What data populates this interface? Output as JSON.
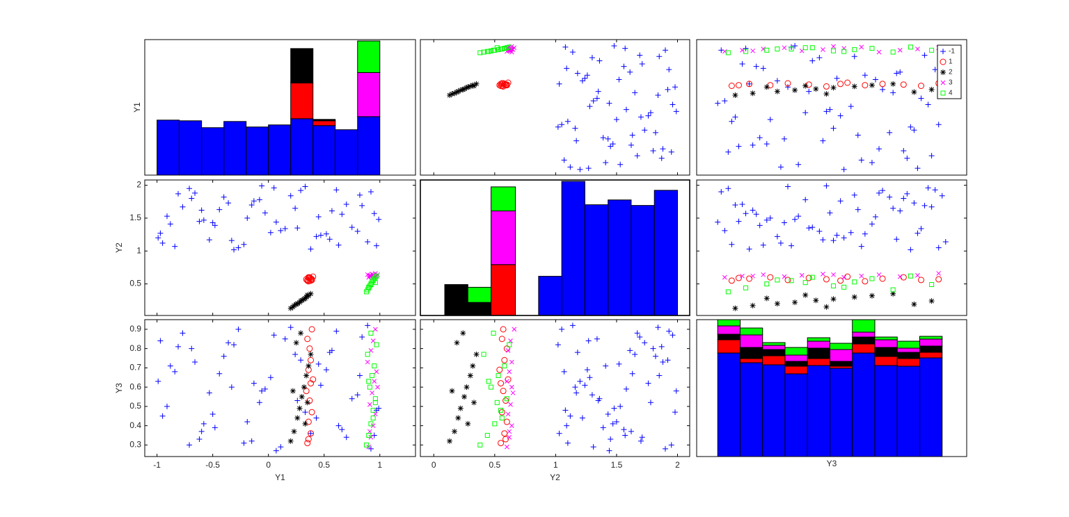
{
  "chart_data": {
    "type": "scatter_matrix",
    "variables": [
      "Y1",
      "Y2",
      "Y3"
    ],
    "xlim": {
      "Y1": [
        -1.11,
        1.32
      ],
      "Y2": [
        -0.11,
        2.1
      ],
      "Y3": [
        0.21,
        0.98
      ]
    },
    "ylim": {
      "Y1": [
        -1.08,
        1.09
      ],
      "Y2": [
        0.02,
        2.08
      ],
      "Y3": [
        0.24,
        0.95
      ]
    },
    "xticks": {
      "Y1": [
        -1,
        -0.5,
        0,
        0.5,
        1
      ],
      "Y2": [
        0,
        0.5,
        1,
        1.5,
        2
      ]
    },
    "yticks": {
      "Y2": [
        0.5,
        1,
        1.5,
        2
      ],
      "Y3": [
        0.3,
        0.4,
        0.5,
        0.6,
        0.7,
        0.8,
        0.9
      ]
    },
    "legend": "upper right",
    "series": [
      {
        "name": "-1",
        "color": "#0000ff",
        "marker": "+",
        "Y1": [
          -0.95,
          -0.81,
          -0.62,
          -0.44,
          -0.27,
          -0.08,
          0.11,
          0.29,
          0.47,
          0.66,
          0.84,
          0.97,
          -0.88,
          -0.71,
          -0.53,
          -0.36,
          -0.19,
          0.02,
          0.2,
          0.38,
          0.57,
          0.75,
          0.92,
          -0.99,
          -0.77,
          -0.58,
          -0.4,
          -0.22,
          -0.03,
          0.15,
          0.33,
          0.52,
          0.7,
          0.89,
          -0.91,
          -0.66,
          -0.48,
          -0.31,
          -0.13,
          0.07,
          0.24,
          0.43,
          0.61,
          0.8,
          0.95,
          -0.84,
          -0.69,
          -0.5,
          -0.33,
          -0.15,
          0.05,
          0.26,
          0.45,
          0.63,
          0.82,
          -0.97,
          -0.6,
          -0.06,
          0.55,
          0.99
        ],
        "Y2": [
          1.12,
          1.87,
          1.45,
          1.63,
          1.05,
          1.78,
          1.31,
          1.92,
          1.24,
          1.56,
          1.69,
          1.08,
          1.41,
          1.95,
          1.17,
          1.73,
          1.5,
          1.28,
          1.84,
          1.03,
          1.61,
          1.36,
          1.9,
          1.2,
          1.67,
          1.47,
          1.82,
          1.1,
          1.58,
          1.34,
          1.98,
          1.26,
          1.71,
          1.14,
          1.53,
          1.88,
          1.39,
          1.02,
          1.76,
          1.44,
          1.65,
          1.22,
          1.93,
          1.3,
          1.57,
          1.07,
          1.8,
          1.43,
          1.16,
          1.7,
          1.96,
          1.35,
          1.52,
          1.09,
          1.85,
          1.27,
          1.62,
          1.99,
          1.18,
          1.48
        ],
        "Y3": [
          0.45,
          0.81,
          0.33,
          0.67,
          0.9,
          0.52,
          0.29,
          0.74,
          0.61,
          0.38,
          0.86,
          0.48,
          0.71,
          0.3,
          0.57,
          0.83,
          0.42,
          0.65,
          0.91,
          0.36,
          0.79,
          0.54,
          0.28,
          0.63,
          0.88,
          0.41,
          0.76,
          0.31,
          0.59,
          0.85,
          0.47,
          0.69,
          0.34,
          0.92,
          0.5,
          0.73,
          0.39,
          0.82,
          0.62,
          0.27,
          0.77,
          0.44,
          0.89,
          0.56,
          0.35,
          0.68,
          0.8,
          0.46,
          0.6,
          0.32,
          0.87,
          0.53,
          0.72,
          0.4,
          0.66,
          0.84,
          0.37,
          0.58,
          0.78,
          0.49
        ]
      },
      {
        "name": "1",
        "color": "#ff0000",
        "marker": "o",
        "Y1": [
          0.35,
          0.38,
          0.36,
          0.39,
          0.37,
          0.34,
          0.4,
          0.36,
          0.38,
          0.37,
          0.35,
          0.39,
          0.36,
          0.38
        ],
        "Y2": [
          0.55,
          0.58,
          0.6,
          0.56,
          0.59,
          0.57,
          0.61,
          0.54,
          0.58,
          0.6,
          0.56,
          0.57,
          0.59,
          0.55
        ],
        "Y3": [
          0.31,
          0.36,
          0.42,
          0.47,
          0.53,
          0.58,
          0.64,
          0.69,
          0.74,
          0.8,
          0.85,
          0.9,
          0.33,
          0.62
        ]
      },
      {
        "name": "2",
        "color": "#000000",
        "marker": "*",
        "Y1": [
          0.2,
          0.23,
          0.26,
          0.28,
          0.3,
          0.32,
          0.34,
          0.36,
          0.38,
          0.25,
          0.29,
          0.33,
          0.22,
          0.35
        ],
        "Y2": [
          0.13,
          0.17,
          0.2,
          0.22,
          0.25,
          0.27,
          0.3,
          0.32,
          0.35,
          0.19,
          0.24,
          0.28,
          0.15,
          0.33
        ],
        "Y3": [
          0.32,
          0.37,
          0.44,
          0.49,
          0.55,
          0.6,
          0.66,
          0.71,
          0.77,
          0.83,
          0.88,
          0.41,
          0.58,
          0.52
        ]
      },
      {
        "name": "3",
        "color": "#ff00ff",
        "marker": "x",
        "Y1": [
          0.9,
          0.92,
          0.94,
          0.96,
          0.91,
          0.93,
          0.95,
          0.97,
          0.89,
          0.92,
          0.94,
          0.96,
          0.91,
          0.98
        ],
        "Y2": [
          0.6,
          0.62,
          0.64,
          0.61,
          0.63,
          0.65,
          0.6,
          0.62,
          0.64,
          0.61,
          0.63,
          0.66,
          0.62,
          0.64
        ],
        "Y3": [
          0.29,
          0.34,
          0.4,
          0.46,
          0.51,
          0.57,
          0.63,
          0.68,
          0.73,
          0.79,
          0.84,
          0.9,
          0.37,
          0.6
        ]
      },
      {
        "name": "4",
        "color": "#00ff00",
        "marker": "s",
        "Y1": [
          0.88,
          0.9,
          0.92,
          0.94,
          0.96,
          0.91,
          0.93,
          0.95,
          0.89,
          0.97,
          0.92,
          0.94,
          0.9,
          0.96
        ],
        "Y2": [
          0.38,
          0.44,
          0.5,
          0.55,
          0.6,
          0.47,
          0.53,
          0.58,
          0.41,
          0.62,
          0.49,
          0.56,
          0.45,
          0.52
        ],
        "Y3": [
          0.3,
          0.35,
          0.41,
          0.48,
          0.54,
          0.6,
          0.66,
          0.71,
          0.77,
          0.82,
          0.88,
          0.44,
          0.63,
          0.52
        ]
      }
    ],
    "histograms": {
      "Y1": {
        "bins": [
          -1,
          -0.8,
          -0.6,
          -0.4,
          -0.2,
          0,
          0.2,
          0.4,
          0.6,
          0.8,
          1
        ],
        "ylim": [
          0,
          197
        ],
        "counts": [
          [
            80,
            79,
            69,
            78,
            70,
            73,
            82,
            72,
            66,
            85
          ],
          [
            0,
            0,
            0,
            0,
            0,
            0,
            52,
            7,
            0,
            0
          ],
          [
            0,
            0,
            0,
            0,
            0,
            0,
            50,
            2,
            0,
            0
          ],
          [
            0,
            0,
            0,
            0,
            0,
            0,
            0,
            0,
            0,
            64
          ],
          [
            0,
            0,
            0,
            0,
            0,
            0,
            0,
            0,
            0,
            46
          ]
        ]
      },
      "Y2": {
        "bins": [
          0.09,
          0.28,
          0.47,
          0.67,
          0.86,
          1.05,
          1.24,
          1.43,
          1.62,
          1.81,
          2.0
        ],
        "ylim": [
          0,
          197
        ],
        "counts": [
          [
            0,
            0,
            0,
            0,
            57,
            195,
            161,
            168,
            160,
            182
          ],
          [
            0,
            0,
            74,
            0,
            0,
            0,
            0,
            0,
            0,
            0
          ],
          [
            45,
            19,
            0,
            0,
            0,
            0,
            0,
            0,
            0,
            0
          ],
          [
            0,
            0,
            78,
            0,
            0,
            0,
            0,
            0,
            0,
            0
          ],
          [
            0,
            22,
            35,
            0,
            0,
            0,
            0,
            0,
            0,
            0
          ]
        ]
      },
      "Y3": {
        "bins": [
          0.27,
          0.334,
          0.398,
          0.462,
          0.526,
          0.59,
          0.654,
          0.718,
          0.782,
          0.846,
          0.91
        ],
        "ylim": [
          0,
          197
        ],
        "counts": [
          [
            149,
            135,
            132,
            119,
            131,
            127,
            149,
            131,
            130,
            142
          ],
          [
            19,
            6,
            13,
            11,
            10,
            3,
            13,
            13,
            11,
            8
          ],
          [
            8,
            16,
            9,
            7,
            15,
            7,
            10,
            13,
            9,
            9
          ],
          [
            12,
            18,
            6,
            9,
            10,
            17,
            7,
            11,
            6,
            10
          ],
          [
            9,
            10,
            4,
            11,
            5,
            9,
            18,
            4,
            10,
            4
          ]
        ]
      }
    }
  }
}
